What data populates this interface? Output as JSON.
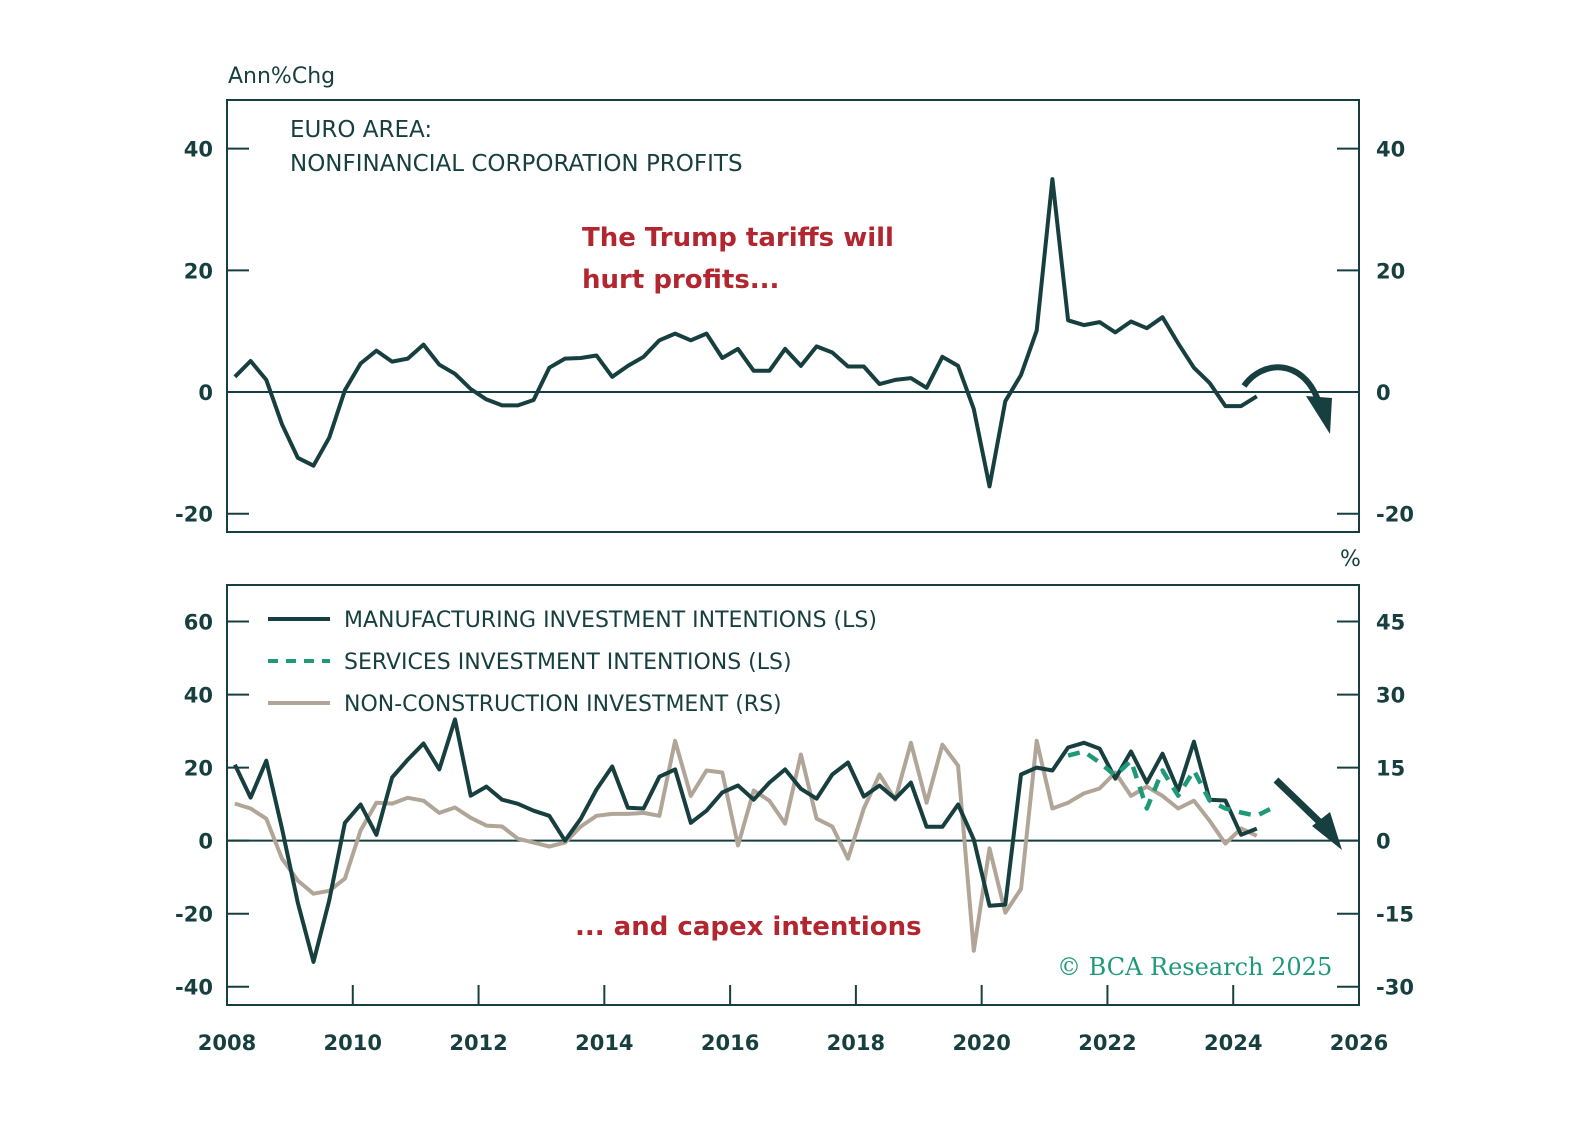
{
  "colors": {
    "dark": "#173f3f",
    "services": "#1f9a78",
    "nonconstruction": "#b0a597",
    "annotation": "#b2262f",
    "credit": "#1f9a78"
  },
  "chart_data": [
    {
      "type": "line",
      "title": "EURO AREA:",
      "subtitle": "NONFINANCIAL CORPORATION PROFITS",
      "ylabel": "Ann%Chg",
      "xlabel": "",
      "annotation": [
        "The Trump tariffs will",
        "hurt profits..."
      ],
      "ylim": [
        -23,
        48
      ],
      "xlim": [
        2008,
        2026
      ],
      "yticks": [
        40,
        20,
        0,
        -20
      ],
      "ytick_labels_left": [
        "40",
        "20",
        "0",
        "-20"
      ],
      "ytick_labels_right": [
        "40",
        "20",
        "0",
        "-20"
      ],
      "arrow": "curved-down-forecast",
      "series": [
        {
          "name": "Nonfinancial corporation profits",
          "style": "solid",
          "x_start": 2008.125,
          "x_step": 0.25,
          "values": [
            2.5,
            5.1,
            2.0,
            -5.3,
            -10.8,
            -12.1,
            -7.5,
            0.3,
            4.7,
            6.8,
            5.0,
            5.5,
            7.8,
            4.5,
            3.0,
            0.5,
            -1.2,
            -2.2,
            -2.2,
            -1.3,
            4.0,
            5.5,
            5.6,
            6.0,
            2.5,
            4.3,
            5.8,
            8.5,
            9.6,
            8.5,
            9.6,
            5.6,
            7.1,
            3.5,
            3.5,
            7.1,
            4.3,
            7.5,
            6.5,
            4.2,
            4.2,
            1.3,
            2.0,
            2.3,
            0.7,
            5.8,
            4.3,
            -2.8,
            -15.5,
            -1.5,
            2.8,
            10.1,
            35.0,
            11.8,
            11.0,
            11.5,
            9.8,
            11.6,
            10.5,
            12.3,
            8.0,
            4.0,
            1.5,
            -2.3,
            -2.3,
            -0.7
          ]
        }
      ]
    },
    {
      "type": "line",
      "title": "",
      "ylabel": "",
      "ylabel_right": "%",
      "annotation": "... and capex intentions",
      "ylim": [
        -45,
        70
      ],
      "ylim_right": [
        -33.75,
        52.5
      ],
      "xlim": [
        2008,
        2026
      ],
      "yticks": [
        60,
        40,
        20,
        0,
        -20,
        -40
      ],
      "ytick_labels_left": [
        "60",
        "40",
        "20",
        "0",
        "-20",
        "-40"
      ],
      "yticks_right": [
        45,
        30,
        15,
        0,
        -15,
        -30
      ],
      "ytick_labels_right": [
        "45",
        "30",
        "15",
        "0",
        "-15",
        "-30"
      ],
      "xticks": [
        2008,
        2010,
        2012,
        2014,
        2016,
        2018,
        2020,
        2022,
        2024,
        2026
      ],
      "xtick_labels": [
        "2008",
        "2010",
        "2012",
        "2014",
        "2016",
        "2018",
        "2020",
        "2022",
        "2024",
        "2026"
      ],
      "arrow": "straight-down-forecast",
      "legend": [
        "MANUFACTURING INVESTMENT INTENTIONS (LS)",
        "SERVICES INVESTMENT INTENTIONS (LS)",
        "NON-CONSTRUCTION INVESTMENT (RS)"
      ],
      "legend_position": "top-left",
      "credit": "© BCA Research 2025",
      "series": [
        {
          "name": "MANUFACTURING INVESTMENT INTENTIONS (LS)",
          "axis": "left",
          "style": "solid",
          "x_start": 2008.125,
          "x_step": 0.25,
          "values": [
            20.8,
            11.8,
            21.9,
            3.3,
            -17.0,
            -33.2,
            -16.4,
            4.9,
            9.9,
            1.6,
            17.3,
            22.2,
            26.6,
            19.5,
            33.2,
            12.3,
            14.8,
            11.2,
            10.1,
            8.2,
            6.8,
            0.0,
            6.0,
            14.0,
            20.3,
            9.0,
            8.8,
            17.5,
            19.5,
            4.9,
            8.2,
            13.2,
            15.1,
            11.2,
            15.9,
            19.5,
            14.2,
            11.5,
            18.1,
            21.4,
            12.1,
            15.1,
            11.5,
            15.9,
            3.8,
            3.8,
            9.9,
            0.3,
            -17.8,
            -17.5,
            18.1,
            20.0,
            19.2,
            25.5,
            26.8,
            25.2,
            17.0,
            24.4,
            15.9,
            23.8,
            13.7,
            27.1,
            11.2,
            11.0,
            1.6,
            3.3
          ]
        },
        {
          "name": "SERVICES INVESTMENT INTENTIONS (LS)",
          "axis": "left",
          "style": "dashed",
          "x_start": 2021.375,
          "x_step": 0.25,
          "values": [
            23.3,
            24.4,
            21.4,
            17.8,
            21.9,
            8.8,
            19.2,
            12.3,
            19.2,
            11.0,
            8.8,
            7.7,
            6.8,
            9.0
          ]
        },
        {
          "name": "NON-CONSTRUCTION INVESTMENT (RS)",
          "axis": "right",
          "style": "solid",
          "x_start": 2008.125,
          "x_step": 0.25,
          "values": [
            7.6,
            6.6,
            4.5,
            -3.7,
            -8.2,
            -10.9,
            -10.3,
            -7.8,
            2.1,
            7.8,
            7.6,
            8.8,
            8.2,
            5.7,
            6.8,
            4.7,
            3.1,
            2.9,
            0.4,
            -0.4,
            -1.2,
            -0.4,
            2.9,
            5.1,
            5.5,
            5.5,
            5.7,
            5.1,
            20.5,
            9.2,
            14.4,
            14.0,
            -1.0,
            10.3,
            8.2,
            3.5,
            17.7,
            4.5,
            2.9,
            -3.7,
            6.6,
            13.6,
            8.4,
            20.1,
            7.8,
            19.7,
            15.4,
            -22.6,
            -1.6,
            -14.8,
            -9.9,
            20.5,
            6.6,
            7.8,
            9.7,
            10.7,
            14.0,
            9.2,
            11.1,
            9.2,
            6.6,
            8.2,
            4.1,
            -0.6,
            2.5,
            1.0
          ]
        }
      ]
    }
  ]
}
